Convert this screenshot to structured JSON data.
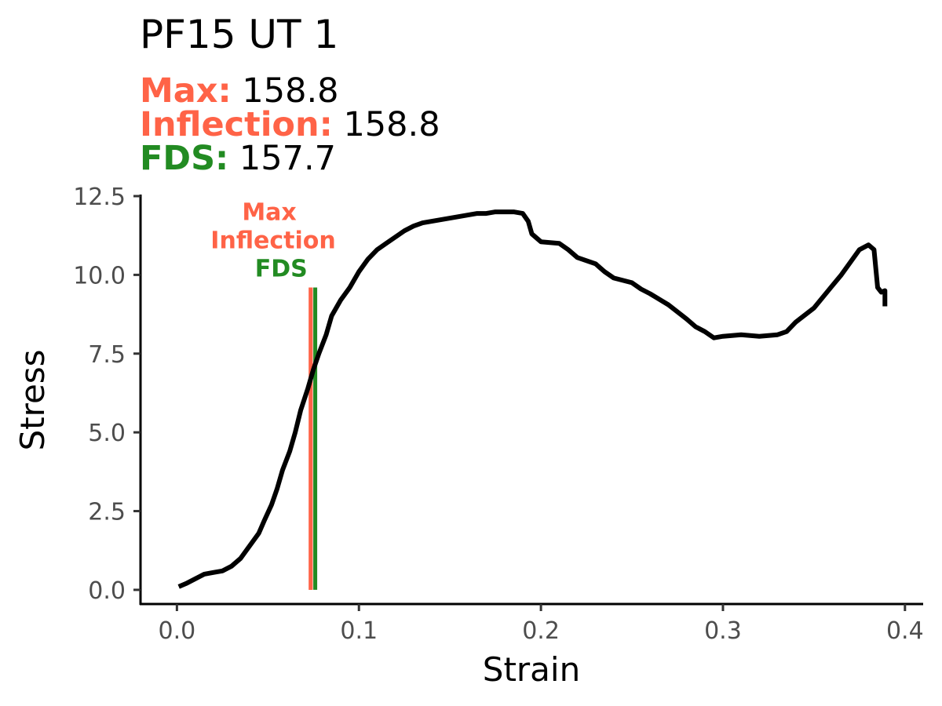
{
  "header": {
    "title": "PF15 UT 1",
    "stats": [
      {
        "label": "Max:",
        "value": "158.8",
        "color": "#FF6347"
      },
      {
        "label": "Inflection:",
        "value": "158.8",
        "color": "#FF6347"
      },
      {
        "label": "FDS:",
        "value": "157.7",
        "color": "#228B22"
      }
    ]
  },
  "chart_data": {
    "type": "line",
    "xlabel": "Strain",
    "ylabel": "Stress",
    "xlim": [
      -0.02,
      0.41
    ],
    "ylim": [
      -0.45,
      12.55
    ],
    "xticks": [
      0.0,
      0.1,
      0.2,
      0.3,
      0.4
    ],
    "xtick_labels": [
      "0.0",
      "0.1",
      "0.2",
      "0.3",
      "0.4"
    ],
    "yticks": [
      0.0,
      2.5,
      5.0,
      7.5,
      10.0,
      12.5
    ],
    "ytick_labels": [
      "0.0",
      "2.5",
      "5.0",
      "7.5",
      "10.0",
      "12.5"
    ],
    "grid": false,
    "line_color": "#000000",
    "series": [
      {
        "x": [
          0.001,
          0.005,
          0.01,
          0.015,
          0.02,
          0.025,
          0.03,
          0.035,
          0.04,
          0.045,
          0.048,
          0.052,
          0.055,
          0.058,
          0.062,
          0.065,
          0.068,
          0.072,
          0.075,
          0.078,
          0.082,
          0.085,
          0.09,
          0.095,
          0.1,
          0.105,
          0.11,
          0.115,
          0.12,
          0.125,
          0.13,
          0.135,
          0.14,
          0.145,
          0.15,
          0.155,
          0.16,
          0.165,
          0.17,
          0.175,
          0.18,
          0.185,
          0.19,
          0.193,
          0.195,
          0.2,
          0.21,
          0.215,
          0.22,
          0.23,
          0.235,
          0.24,
          0.25,
          0.255,
          0.26,
          0.27,
          0.28,
          0.285,
          0.29,
          0.295,
          0.3,
          0.31,
          0.32,
          0.33,
          0.335,
          0.34,
          0.35,
          0.355,
          0.36,
          0.365,
          0.37,
          0.375,
          0.38,
          0.383,
          0.385,
          0.387,
          0.389,
          0.389
        ],
        "y": [
          0.1,
          0.2,
          0.35,
          0.5,
          0.55,
          0.6,
          0.75,
          1.0,
          1.4,
          1.8,
          2.2,
          2.7,
          3.2,
          3.8,
          4.4,
          5.0,
          5.7,
          6.4,
          7.0,
          7.5,
          8.1,
          8.7,
          9.2,
          9.6,
          10.1,
          10.5,
          10.8,
          11.0,
          11.2,
          11.4,
          11.55,
          11.65,
          11.7,
          11.75,
          11.8,
          11.85,
          11.9,
          11.95,
          11.95,
          12.0,
          12.0,
          12.0,
          11.95,
          11.7,
          11.3,
          11.05,
          11.0,
          10.8,
          10.55,
          10.35,
          10.1,
          9.9,
          9.75,
          9.55,
          9.4,
          9.05,
          8.6,
          8.35,
          8.2,
          8.0,
          8.05,
          8.1,
          8.05,
          8.1,
          8.2,
          8.5,
          8.95,
          9.3,
          9.65,
          10.0,
          10.4,
          10.8,
          10.95,
          10.8,
          9.6,
          9.45,
          9.5,
          9.0
        ]
      }
    ],
    "markers": [
      {
        "label": "Max",
        "x": 0.0735,
        "y_from": 0.0,
        "y_to": 9.6,
        "color": "#FF6347"
      },
      {
        "label": "Inflection",
        "x": 0.0735,
        "y_from": 0.0,
        "y_to": 9.6,
        "color": "#FF6347"
      },
      {
        "label": "FDS",
        "x": 0.076,
        "y_from": 0.0,
        "y_to": 9.6,
        "color": "#228B22"
      }
    ]
  }
}
